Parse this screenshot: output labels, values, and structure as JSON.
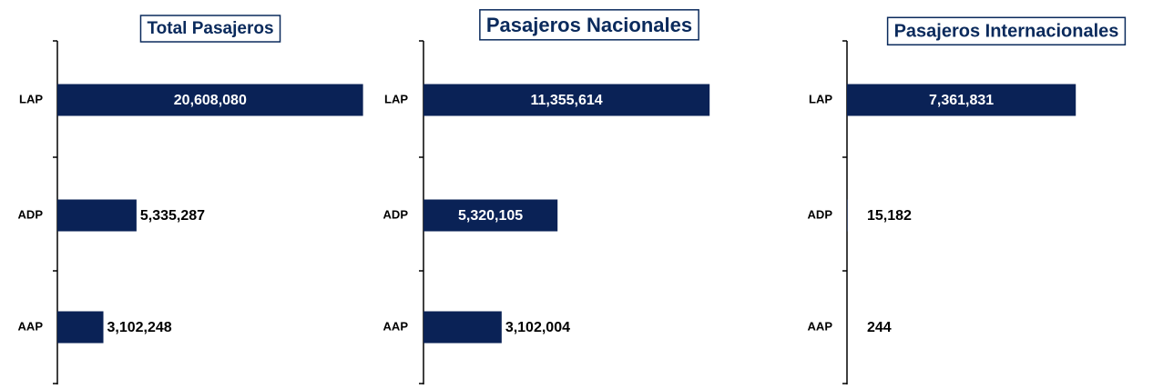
{
  "chart_data": [
    {
      "type": "barh",
      "title": "Total Pasajeros",
      "categories": [
        "LAP",
        "ADP",
        "AAP"
      ],
      "values": [
        20608080,
        5335287,
        3102248
      ],
      "value_labels": [
        "20,608,080",
        "5,335,287",
        "3,102,248"
      ],
      "color": "#0a2256",
      "xlim": [
        0,
        21000000
      ]
    },
    {
      "type": "barh",
      "title": "Pasajeros Nacionales",
      "categories": [
        "LAP",
        "ADP",
        "AAP"
      ],
      "values": [
        11355614,
        5320105,
        3102004
      ],
      "value_labels": [
        "11,355,614",
        "5,320,105",
        "3,102,004"
      ],
      "color": "#0a2256",
      "xlim": [
        0,
        12000000
      ]
    },
    {
      "type": "barh",
      "title": "Pasajeros Internacionales",
      "categories": [
        "LAP",
        "ADP",
        "AAP"
      ],
      "values": [
        7361831,
        15182,
        244
      ],
      "value_labels": [
        "7,361,831",
        "15,182",
        "244"
      ],
      "color": "#0a2256",
      "xlim": [
        0,
        8000000
      ]
    }
  ]
}
